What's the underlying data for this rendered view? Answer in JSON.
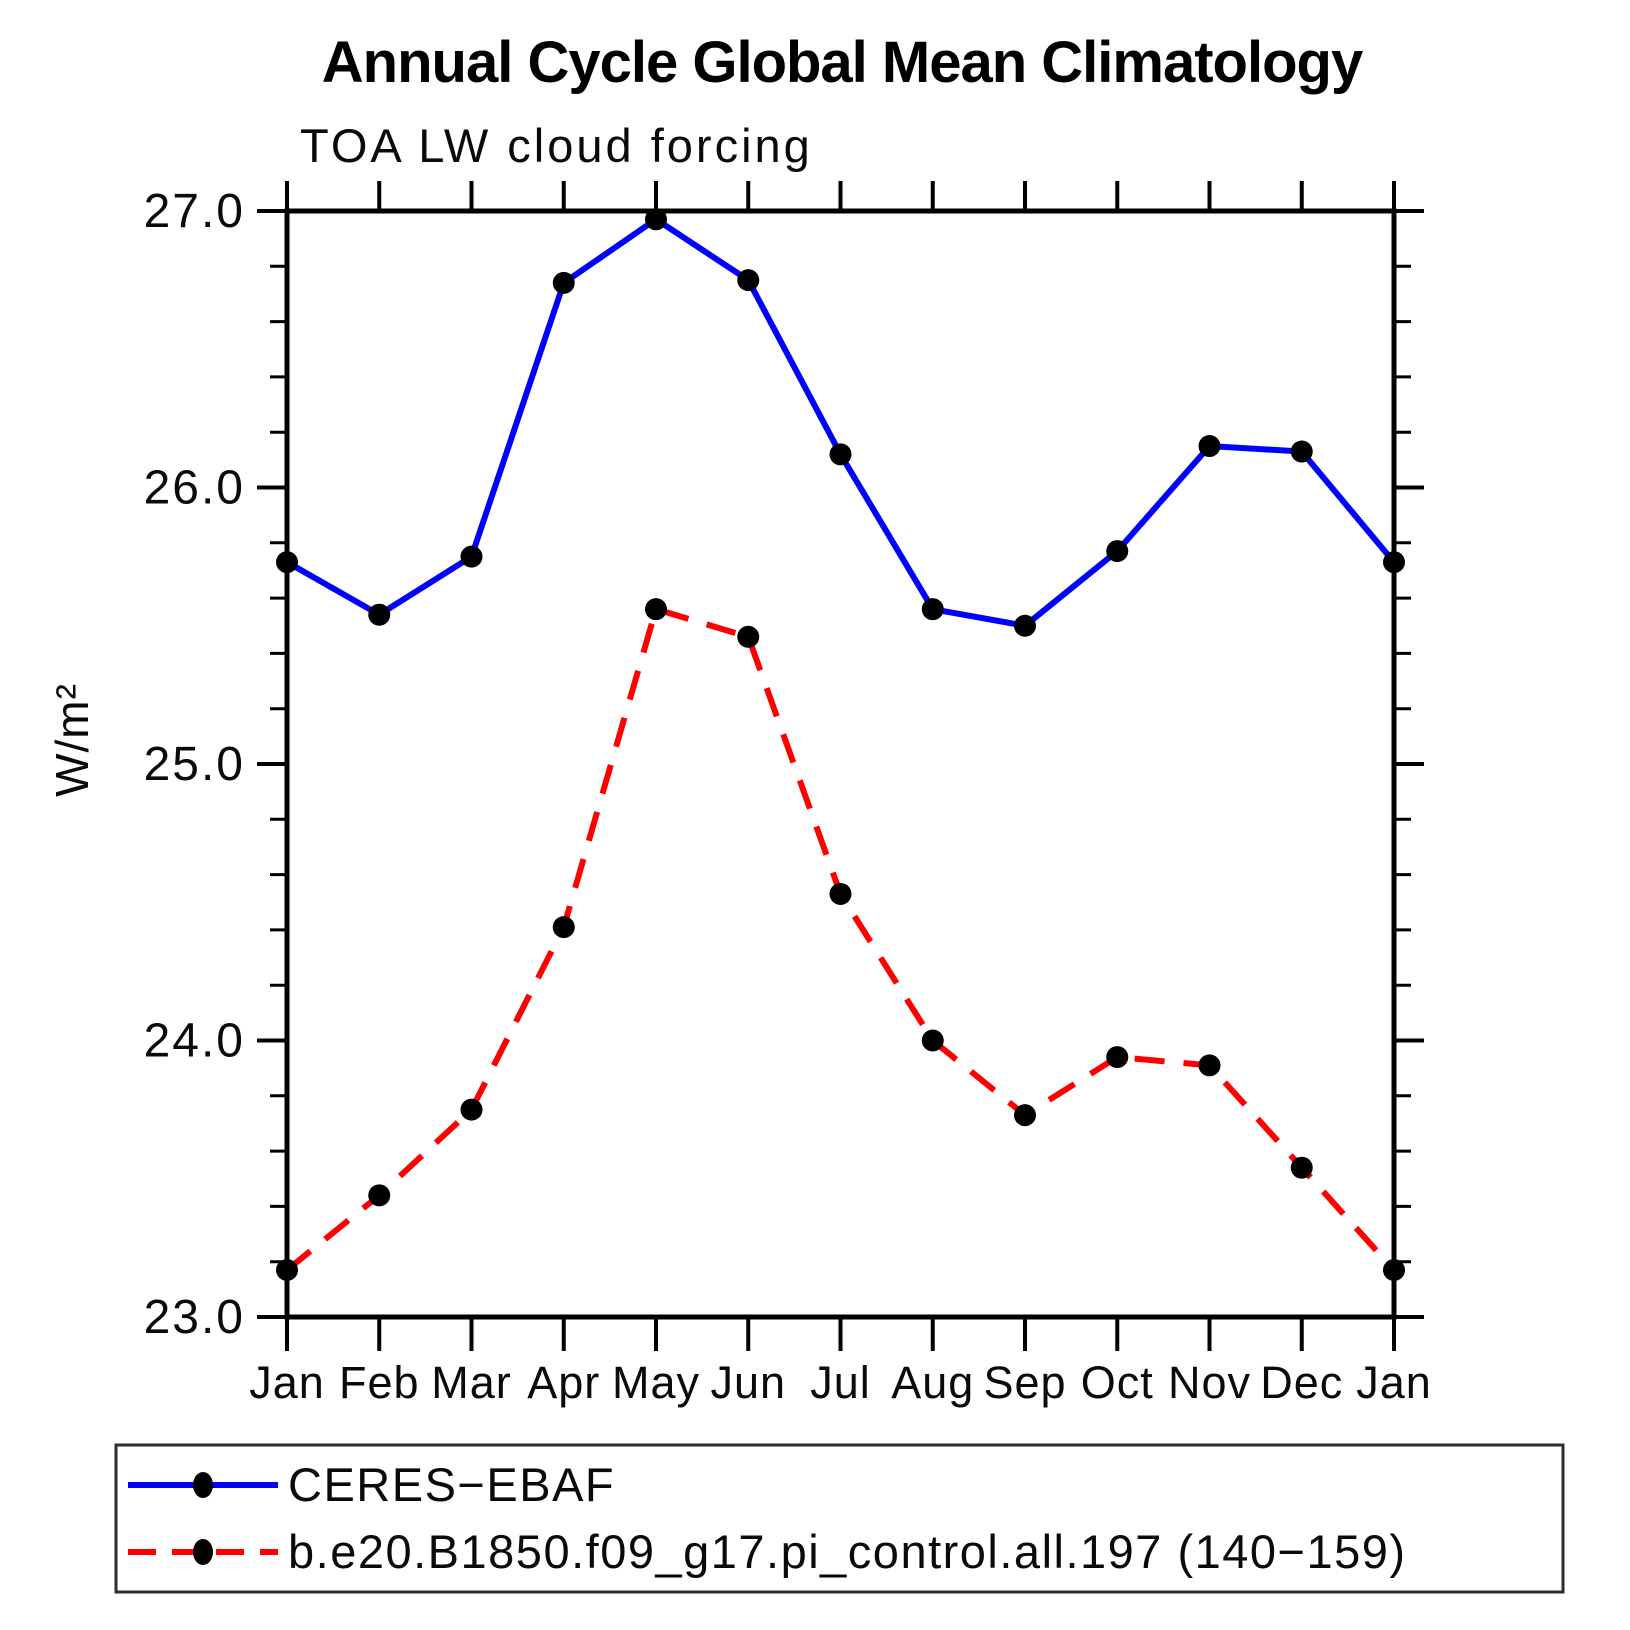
{
  "page": {
    "title": "Annual Cycle Global Mean Climatology",
    "subtitle": "TOA LW cloud forcing"
  },
  "chart_data": {
    "type": "line",
    "title": "Annual Cycle Global Mean Climatology",
    "subtitle": "TOA LW cloud forcing",
    "xlabel": "",
    "ylabel": "W/m²",
    "ylim": [
      23.0,
      27.0
    ],
    "y_major_step": 1.0,
    "y_minor_step": 0.2,
    "y_tick_labels": [
      "23.0",
      "24.0",
      "25.0",
      "26.0",
      "27.0"
    ],
    "categories": [
      "Jan",
      "Feb",
      "Mar",
      "Apr",
      "May",
      "Jun",
      "Jul",
      "Aug",
      "Sep",
      "Oct",
      "Nov",
      "Dec",
      "Jan"
    ],
    "grid": false,
    "legend_position": "bottom",
    "colors": {
      "axis": "#000000",
      "marker": "#000000",
      "series1": "#0000ff",
      "series2": "#ff0000"
    },
    "series": [
      {
        "name": "CERES−EBAF",
        "color": "#0000ff",
        "style": "solid",
        "marker": "circle",
        "marker_color": "#000000",
        "values": [
          25.73,
          25.54,
          25.75,
          26.74,
          26.97,
          26.75,
          26.12,
          25.56,
          25.5,
          25.77,
          26.15,
          26.13,
          25.73
        ]
      },
      {
        "name": "b.e20.B1850.f09_g17.pi_control.all.197 (140−159)",
        "color": "#ff0000",
        "style": "dashed",
        "marker": "circle",
        "marker_color": "#000000",
        "values": [
          23.17,
          23.44,
          23.75,
          24.41,
          25.56,
          25.46,
          24.53,
          24.0,
          23.73,
          23.94,
          23.91,
          23.54,
          23.17
        ]
      }
    ]
  }
}
